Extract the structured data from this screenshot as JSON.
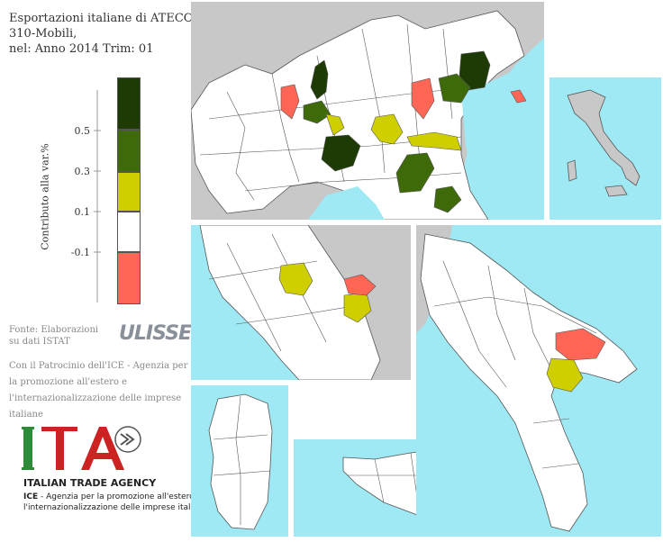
{
  "title": {
    "line1": "Esportazioni italiane di ATECO:",
    "line2": "310-Mobili,",
    "line3": "nel: Anno 2014 Trim: 01"
  },
  "legend": {
    "axis_title": "Contributo alla var.%",
    "ticks": [
      "0.5",
      "0.3",
      "0.1",
      "-0.1"
    ],
    "classes": [
      {
        "color": "#1e3a05"
      },
      {
        "color": "#3e6a0a"
      },
      {
        "color": "#cfcf00"
      },
      {
        "color": "#ffffff"
      },
      {
        "color": "#ff6655"
      }
    ]
  },
  "source": {
    "line1": "Fonte: Elaborazioni",
    "line2": "su dati ISTAT"
  },
  "ulisse_logo": "ULISSE",
  "patronage": "Con il Patrocinio dell'ICE - Agenzia per la promozione all'estero e l'internazionalizzazione delle imprese italiane",
  "ita": {
    "logo_text": "ITA",
    "name": "ITALIAN TRADE AGENCY",
    "desc_prefix": "ICE",
    "desc_line1": " - Agenzia per la promozione all'estero e",
    "desc_line2": "l'internazionalizzazione delle imprese italiane"
  },
  "colors": {
    "sea": "#9ee9f3",
    "land_foreign": "#c8c8c8",
    "land_default": "#ffffff",
    "border": "#555555"
  }
}
